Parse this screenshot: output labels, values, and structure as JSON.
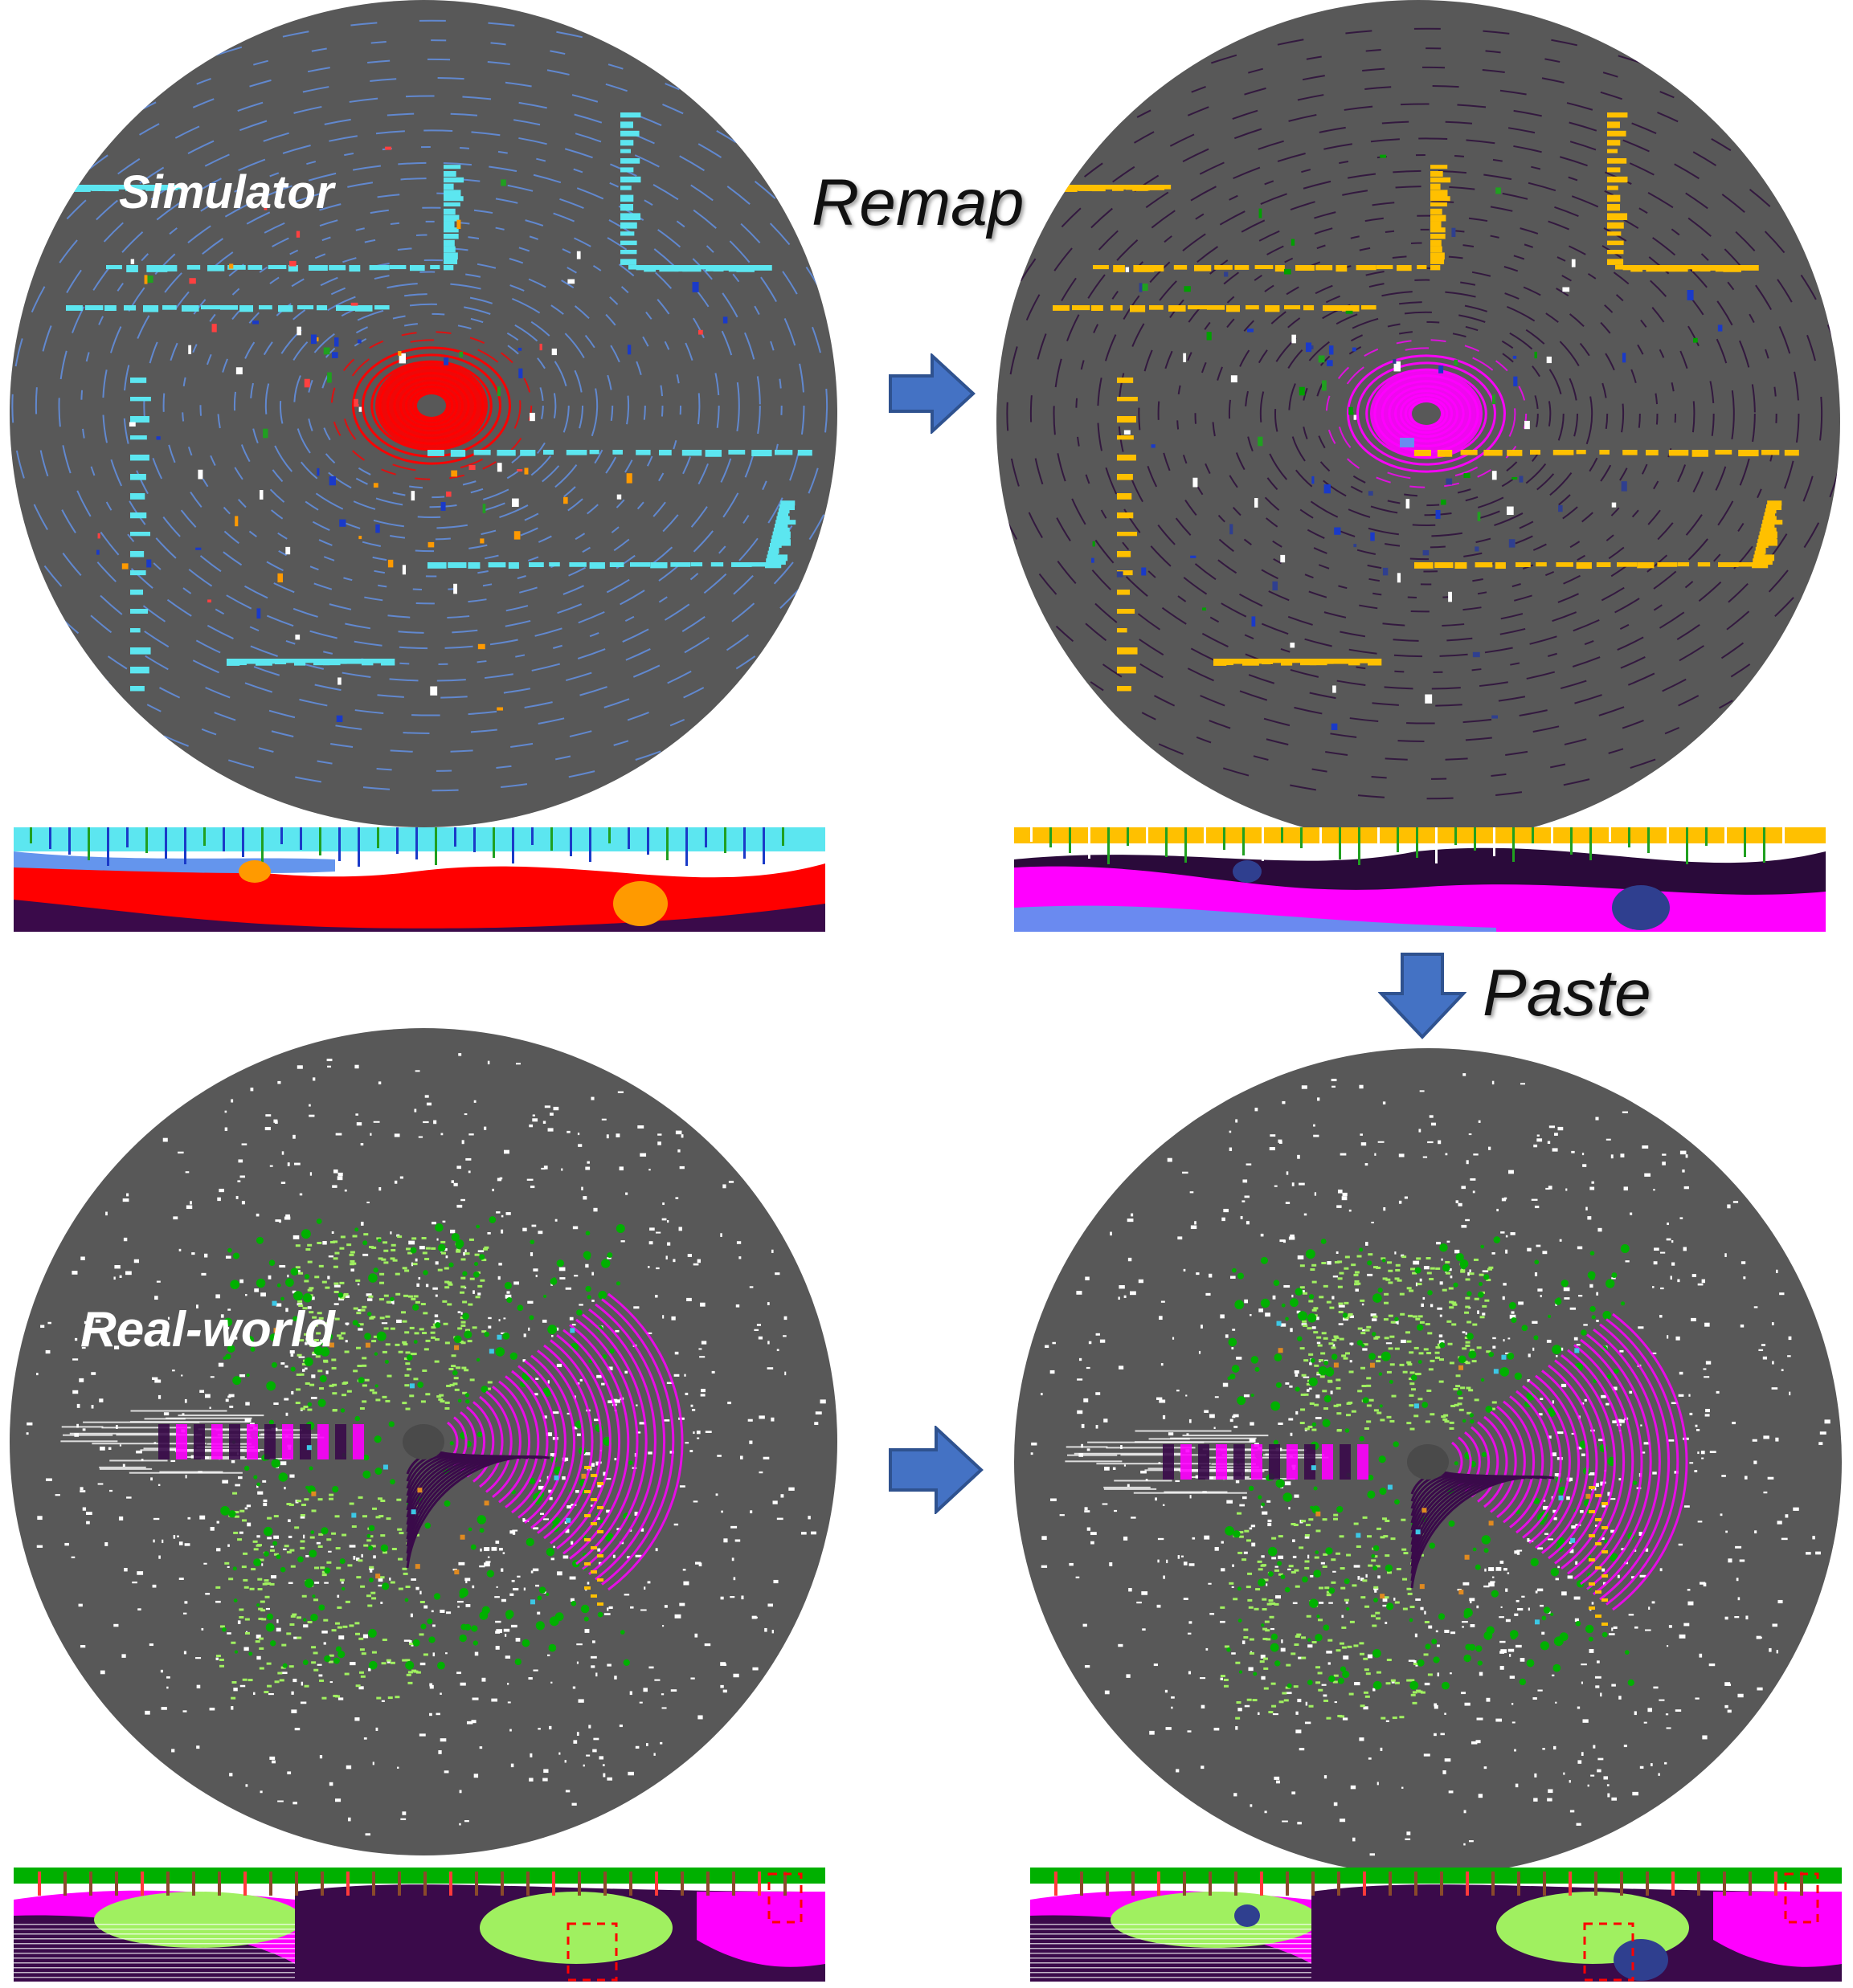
{
  "labels": {
    "simulator": "Simulator",
    "real_world": "Real-world",
    "remap": "Remap",
    "paste": "Paste"
  },
  "colors": {
    "background": "#ffffff",
    "panel": "#585858",
    "arrow_fill": "#4472c4",
    "arrow_stroke": "#2f528f",
    "sim_road": "#ff0000",
    "sim_sidewalk": "#6495ed",
    "sim_building": "#5ce6f0",
    "sim_vehicle": "#ff9a00",
    "remap_road": "#ff00ff",
    "remap_terrain": "#2a0a3a",
    "remap_building": "#ffc000",
    "remap_vegetation": "#00a000",
    "remap_vehicle": "#2f3f8f",
    "real_vegetation": "#00b000",
    "real_terrain": "#a0f060",
    "real_road": "#ff00ff",
    "real_sidewalk": "#3a0a4a",
    "real_unlabeled": "#ffffff",
    "highlight_box": "#ff0000"
  },
  "icons": {
    "transform_arrow": "right-arrow-icon",
    "paste_arrow": "down-arrow-icon"
  }
}
